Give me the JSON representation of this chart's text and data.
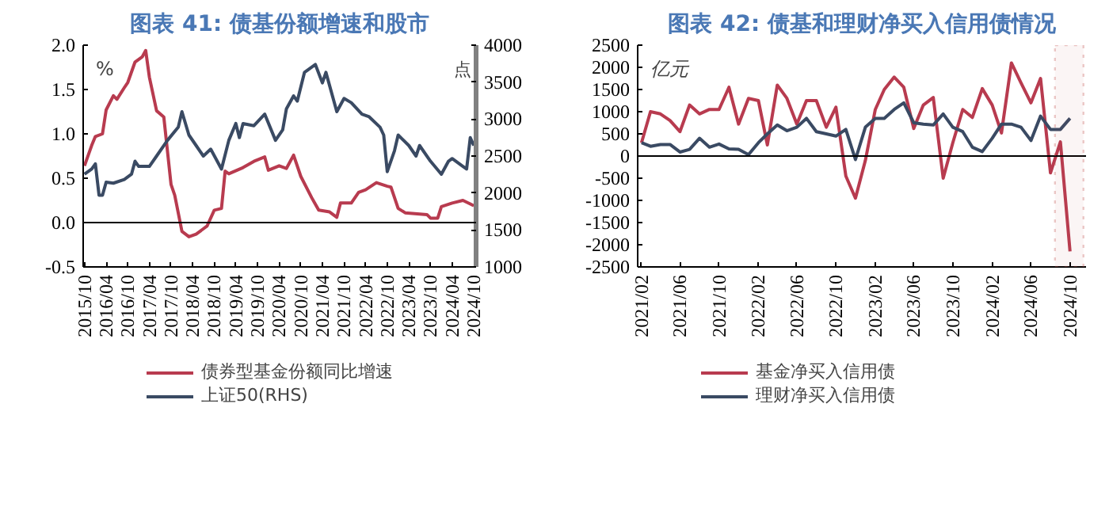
{
  "chart_data": [
    {
      "type": "line",
      "title": "图表 41: 债基份额增速和股市",
      "ylabel": "%",
      "y2label": "点",
      "legend": "bottom",
      "grid": false,
      "ref_lines": [
        {
          "axis": "y",
          "value": 0,
          "label": null
        }
      ],
      "xlim": [
        "2015-09-20",
        "2024-10-20"
      ],
      "ylim": [
        -0.5,
        2.0
      ],
      "yticks": [
        {
          "value": -0.5,
          "label": "-0.5"
        },
        {
          "value": 0,
          "label": "0.0"
        },
        {
          "value": 0.5,
          "label": "0.5"
        },
        {
          "value": 1,
          "label": "1.0"
        },
        {
          "value": 1.5,
          "label": "1.5"
        },
        {
          "value": 2,
          "label": "2.0"
        }
      ],
      "y2lim": [
        1000,
        4000
      ],
      "y2ticks": [
        1000,
        1500,
        2000,
        2500,
        3000,
        3500,
        4000
      ],
      "xticks": [
        {
          "value": "2015-10",
          "label": "2015/10"
        },
        {
          "value": "2016-04",
          "label": "2016/04"
        },
        {
          "value": "2016-10",
          "label": "2016/10"
        },
        {
          "value": "2017-04",
          "label": "2017/04"
        },
        {
          "value": "2017-10",
          "label": "2017/10"
        },
        {
          "value": "2018-04",
          "label": "2018/04"
        },
        {
          "value": "2018-10",
          "label": "2018/10"
        },
        {
          "value": "2019-04",
          "label": "2019/04"
        },
        {
          "value": "2019-10",
          "label": "2019/10"
        },
        {
          "value": "2020-04",
          "label": "2020/04"
        },
        {
          "value": "2020-10",
          "label": "2020/10"
        },
        {
          "value": "2021-04",
          "label": "2021/04"
        },
        {
          "value": "2021-10",
          "label": "2021/10"
        },
        {
          "value": "2022-04",
          "label": "2022/04"
        },
        {
          "value": "2022-10",
          "label": "2022/10"
        },
        {
          "value": "2023-04",
          "label": "2023/04"
        },
        {
          "value": "2023-10",
          "label": "2023/10"
        },
        {
          "value": "2024-04",
          "label": "2024/04"
        },
        {
          "value": "2024-10",
          "label": "2024/10"
        }
      ],
      "series": [
        {
          "name": "债券型基金份额同比增速",
          "color": "#b83b4f",
          "x": [
            "2015-10",
            "2015-12",
            "2016-01",
            "2016-03",
            "2016-04",
            "2016-06",
            "2016-07",
            "2016-09",
            "2016-10",
            "2016-12",
            "2017-02",
            "2017-03",
            "2017-04",
            "2017-06",
            "2017-08",
            "2017-10",
            "2017-11",
            "2018-01",
            "2018-03",
            "2018-05",
            "2018-08",
            "2018-10",
            "2018-12",
            "2019-01",
            "2019-02",
            "2019-06",
            "2019-09",
            "2019-12",
            "2020-01",
            "2020-04",
            "2020-06",
            "2020-08",
            "2020-10",
            "2021-01",
            "2021-03",
            "2021-06",
            "2021-08",
            "2021-09",
            "2021-12",
            "2022-02",
            "2022-04",
            "2022-07",
            "2022-10",
            "2022-11",
            "2023-01",
            "2023-03",
            "2023-09",
            "2023-10",
            "2023-12",
            "2024-01",
            "2024-04",
            "2024-07",
            "2024-09",
            "2024-10"
          ],
          "values": [
            0.64,
            0.87,
            0.97,
            1.0,
            1.27,
            1.43,
            1.39,
            1.52,
            1.58,
            1.81,
            1.87,
            1.94,
            1.64,
            1.26,
            1.19,
            0.43,
            0.31,
            -0.1,
            -0.16,
            -0.13,
            -0.04,
            0.14,
            0.16,
            0.58,
            0.55,
            0.62,
            0.69,
            0.74,
            0.59,
            0.64,
            0.61,
            0.76,
            0.52,
            0.28,
            0.14,
            0.12,
            0.06,
            0.22,
            0.22,
            0.34,
            0.37,
            0.45,
            0.41,
            0.4,
            0.16,
            0.11,
            0.09,
            0.05,
            0.05,
            0.18,
            0.22,
            0.25,
            0.21,
            0.19
          ]
        },
        {
          "name": "上证50(RHS)",
          "color": "#3a4a63",
          "axis": "y2",
          "x": [
            "2015-10",
            "2015-12",
            "2016-01",
            "2016-02",
            "2016-03",
            "2016-04",
            "2016-06",
            "2016-09",
            "2016-11",
            "2016-12",
            "2017-01",
            "2017-04",
            "2017-06",
            "2017-09",
            "2017-12",
            "2018-01",
            "2018-03",
            "2018-05",
            "2018-07",
            "2018-09",
            "2018-12",
            "2019-02",
            "2019-04",
            "2019-05",
            "2019-06",
            "2019-09",
            "2019-12",
            "2020-03",
            "2020-05",
            "2020-06",
            "2020-08",
            "2020-09",
            "2020-11",
            "2021-02",
            "2021-04",
            "2021-05",
            "2021-08",
            "2021-10",
            "2021-12",
            "2022-03",
            "2022-05",
            "2022-08",
            "2022-09",
            "2022-10",
            "2022-12",
            "2023-01",
            "2023-04",
            "2023-06",
            "2023-07",
            "2023-10",
            "2024-01",
            "2024-03",
            "2024-04",
            "2024-07",
            "2024-08",
            "2024-09",
            "2024-10"
          ],
          "values": [
            2254,
            2324,
            2395,
            1970,
            1970,
            2147,
            2133,
            2183,
            2254,
            2430,
            2360,
            2360,
            2500,
            2713,
            2890,
            3100,
            2784,
            2642,
            2500,
            2593,
            2324,
            2713,
            2940,
            2750,
            2940,
            2910,
            3067,
            2713,
            2855,
            3137,
            3314,
            3243,
            3632,
            3738,
            3490,
            3632,
            3100,
            3279,
            3222,
            3067,
            3031,
            2890,
            2784,
            2289,
            2572,
            2784,
            2642,
            2500,
            2642,
            2430,
            2254,
            2430,
            2466,
            2360,
            2324,
            2748,
            2642
          ]
        }
      ]
    },
    {
      "type": "line",
      "title": "图表 42: 债基和理财净买入信用债情况",
      "ylabel": "亿元",
      "legend": "bottom",
      "grid": false,
      "ref_lines": [
        {
          "axis": "y",
          "value": 0,
          "label": null
        }
      ],
      "xlim": [
        "2021-01-20",
        "2024-11-20"
      ],
      "ylim": [
        -2500,
        2500
      ],
      "yticks": [
        -2500,
        -2000,
        -1500,
        -1000,
        -500,
        0,
        500,
        1000,
        1500,
        2000,
        2500
      ],
      "xticks": [
        {
          "value": "2021-02",
          "label": "2021/02"
        },
        {
          "value": "2021-06",
          "label": "2021/06"
        },
        {
          "value": "2021-10",
          "label": "2021/10"
        },
        {
          "value": "2022-02",
          "label": "2022/02"
        },
        {
          "value": "2022-06",
          "label": "2022/06"
        },
        {
          "value": "2022-10",
          "label": "2022/10"
        },
        {
          "value": "2023-02",
          "label": "2023/02"
        },
        {
          "value": "2023-06",
          "label": "2023/06"
        },
        {
          "value": "2023-10",
          "label": "2023/10"
        },
        {
          "value": "2024-02",
          "label": "2024/02"
        },
        {
          "value": "2024-06",
          "label": "2024/06"
        },
        {
          "value": "2024-10",
          "label": "2024/10"
        }
      ],
      "bands": [
        {
          "axis": "x",
          "from": "2024-08-15",
          "to": "2024-11-12",
          "label": null,
          "color": "#c0504d"
        }
      ],
      "x": [
        "2021-02",
        "2021-03",
        "2021-04",
        "2021-05",
        "2021-06",
        "2021-07",
        "2021-08",
        "2021-09",
        "2021-10",
        "2021-11",
        "2021-12",
        "2022-01",
        "2022-02",
        "2022-03",
        "2022-04",
        "2022-05",
        "2022-06",
        "2022-07",
        "2022-08",
        "2022-09",
        "2022-10",
        "2022-11",
        "2022-12",
        "2023-01",
        "2023-02",
        "2023-03",
        "2023-04",
        "2023-05",
        "2023-06",
        "2023-07",
        "2023-08",
        "2023-09",
        "2023-10",
        "2023-11",
        "2023-12",
        "2024-01",
        "2024-02",
        "2024-03",
        "2024-04",
        "2024-05",
        "2024-06",
        "2024-07",
        "2024-08",
        "2024-09",
        "2024-10"
      ],
      "series": [
        {
          "name": "基金净买入信用债",
          "color": "#b83b4f",
          "values": [
            300,
            1000,
            950,
            800,
            550,
            1150,
            950,
            1050,
            1050,
            1550,
            720,
            1300,
            1250,
            250,
            1600,
            1300,
            720,
            1250,
            1250,
            650,
            1100,
            -450,
            -950,
            -100,
            1050,
            1500,
            1780,
            1550,
            620,
            1150,
            1320,
            -500,
            300,
            1050,
            870,
            1520,
            1150,
            520,
            2100,
            1650,
            1200,
            1750,
            -380,
            320,
            -2150
          ]
        },
        {
          "name": "理财净买入信用债",
          "color": "#3a4a63",
          "values": [
            300,
            220,
            260,
            260,
            90,
            150,
            400,
            200,
            270,
            160,
            150,
            30,
            300,
            500,
            700,
            570,
            650,
            850,
            550,
            500,
            450,
            600,
            -80,
            650,
            850,
            850,
            1050,
            1200,
            750,
            720,
            700,
            950,
            650,
            550,
            200,
            100,
            400,
            720,
            720,
            650,
            350,
            900,
            600,
            600,
            850
          ]
        }
      ]
    }
  ]
}
